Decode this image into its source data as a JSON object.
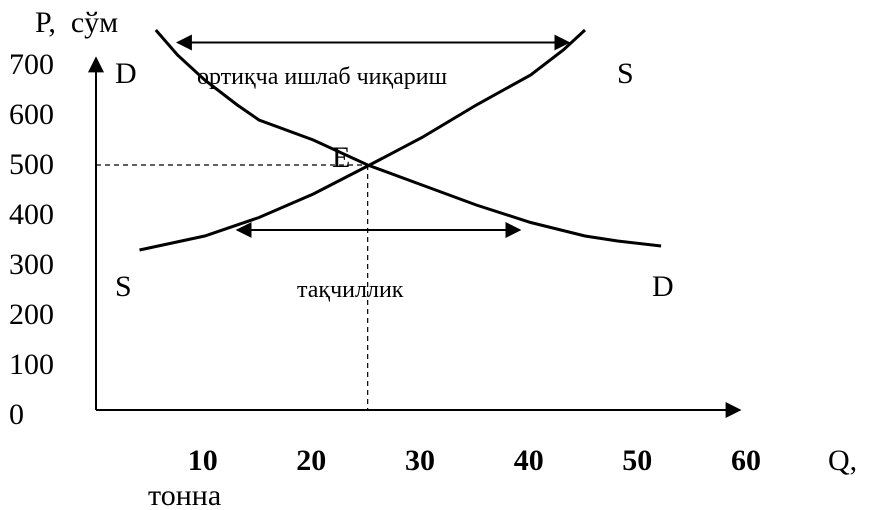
{
  "chart_data": {
    "type": "line",
    "title": "",
    "ylabel": "P,  сўм",
    "xlabel": "Q,",
    "xunit": "тонна",
    "x_ticks": [
      "10",
      "20",
      "30",
      "40",
      "50",
      "60"
    ],
    "y_ticks": [
      "0",
      "100",
      "200",
      "300",
      "400",
      "500",
      "600",
      "700"
    ],
    "xlim": [
      0,
      60
    ],
    "ylim": [
      0,
      800
    ],
    "grid": false,
    "series": [
      {
        "name": "D",
        "color": "#000000",
        "points": [
          [
            5.5,
            760
          ],
          [
            7.5,
            710
          ],
          [
            10,
            660
          ],
          [
            13,
            610
          ],
          [
            15,
            580
          ],
          [
            20,
            540
          ],
          [
            25,
            490
          ],
          [
            30,
            450
          ],
          [
            35,
            410
          ],
          [
            40,
            375
          ],
          [
            45,
            348
          ],
          [
            48,
            338
          ],
          [
            52,
            328
          ]
        ]
      },
      {
        "name": "S",
        "color": "#000000",
        "points": [
          [
            4,
            320
          ],
          [
            10,
            348
          ],
          [
            15,
            385
          ],
          [
            20,
            432
          ],
          [
            25,
            488
          ],
          [
            30,
            545
          ],
          [
            35,
            610
          ],
          [
            40,
            670
          ],
          [
            43,
            720
          ],
          [
            45,
            760
          ]
        ]
      }
    ],
    "curve_labels": {
      "demand_top": "D",
      "demand_bottom": "D",
      "supply_top": "S",
      "supply_bottom": "S"
    },
    "equilibrium": {
      "label": "E",
      "x": 25,
      "y": 490
    },
    "annotations": [
      {
        "text": "ортиқча ишлаб чиқариш",
        "y": 735,
        "x_from": 7.5,
        "x_to": 43.5
      },
      {
        "text": "тақчиллик",
        "y": 360,
        "x_from": 13,
        "x_to": 39
      }
    ]
  }
}
